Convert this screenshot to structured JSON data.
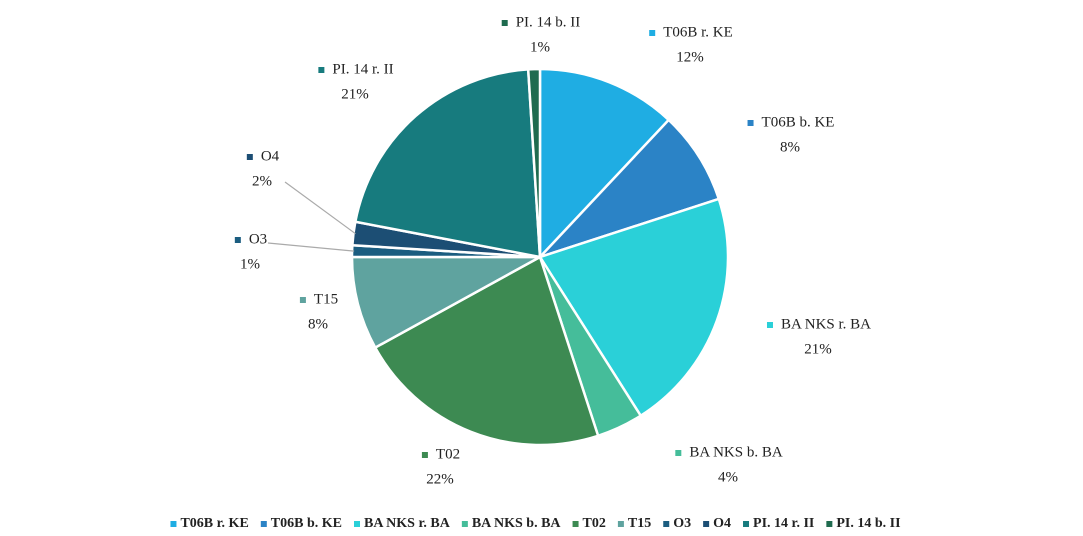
{
  "chart_data": {
    "type": "pie",
    "categories": [
      "T06B r. KE",
      "T06B b. KE",
      "BA NKS r. BA",
      "BA NKS b. BA",
      "T02",
      "T15",
      "O3",
      "O4",
      "PI. 14 r. II",
      "PI. 14 b. II"
    ],
    "values": [
      12,
      8,
      21,
      4,
      22,
      8,
      1,
      2,
      21,
      1
    ],
    "value_labels": [
      "12%",
      "8%",
      "21%",
      "4%",
      "22%",
      "8%",
      "1%",
      "2%",
      "21%",
      "1%"
    ],
    "colors": [
      "#1fade3",
      "#2b83c6",
      "#2ad0d8",
      "#45bd9a",
      "#3d8a52",
      "#5fa39f",
      "#1b5d80",
      "#1c4e74",
      "#177b7e",
      "#1f6b4f"
    ],
    "legend": "bottom"
  }
}
